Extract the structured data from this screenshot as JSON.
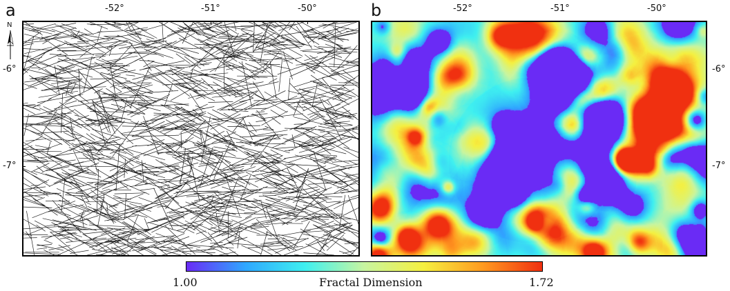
{
  "panels": {
    "a": {
      "label": "a"
    },
    "b": {
      "label": "b"
    }
  },
  "ticks": {
    "lon": [
      "-52°",
      "-51°",
      "-50°"
    ],
    "lat": [
      "-6°",
      "-7°"
    ]
  },
  "north_arrow": {
    "label": "N"
  },
  "colorbar": {
    "min_label": "1.00",
    "max_label": "1.72",
    "title": "Fractal Dimension",
    "colors": [
      "#6a2bf5",
      "#2fa8ff",
      "#3ff0f0",
      "#c8f5a0",
      "#f5f040",
      "#ff9a20",
      "#f03010"
    ]
  }
}
